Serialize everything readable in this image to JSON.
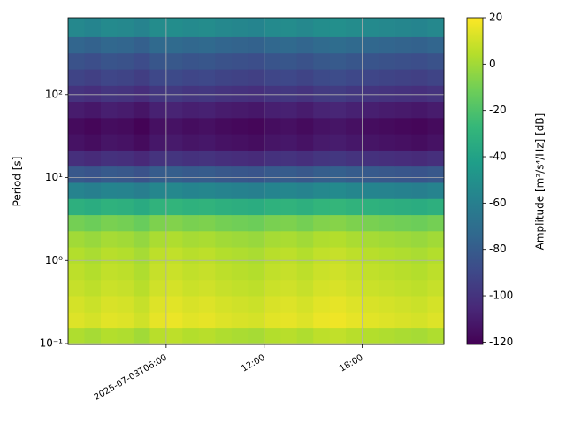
{
  "chart_data": {
    "type": "heatmap",
    "y_label": "Period [s]",
    "colorbar_label": "Amplitude [m²/s⁴/Hz] [dB]",
    "colormap": "viridis",
    "y_log": true,
    "grid": true,
    "xlim": [
      0,
      23
    ],
    "xticks": [
      {
        "value": 6,
        "label": "2025-07-03T06:00"
      },
      {
        "value": 12,
        "label": "12:00"
      },
      {
        "value": 18,
        "label": "18:00"
      }
    ],
    "ylim": [
      0.0976,
      843
    ],
    "yticks": [
      {
        "value": 0.1,
        "label": "10⁻¹"
      },
      {
        "value": 1,
        "label": "10⁰"
      },
      {
        "value": 10,
        "label": "10¹"
      },
      {
        "value": 100,
        "label": "10²"
      }
    ],
    "clim": [
      -121,
      20
    ],
    "cticks": [
      -120,
      -100,
      -80,
      -60,
      -40,
      -20,
      0,
      20
    ],
    "x_edges": [
      0,
      1,
      2,
      3,
      4,
      5,
      6,
      7,
      8,
      9,
      10,
      11,
      12,
      13,
      14,
      15,
      16,
      17,
      18,
      19,
      20,
      21,
      22,
      23
    ],
    "y_edges": [
      0.0976,
      0.153,
      0.24,
      0.376,
      0.589,
      0.923,
      1.45,
      2.27,
      3.55,
      5.57,
      8.73,
      13.7,
      21.4,
      33.6,
      52.6,
      82.5,
      129,
      202,
      317,
      497,
      843
    ],
    "z": [
      [
        3,
        1,
        4,
        3,
        0,
        5,
        6,
        4,
        5,
        3,
        2,
        1,
        4,
        5,
        3,
        6,
        7,
        5,
        4,
        3,
        2,
        1,
        3
      ],
      [
        13,
        11,
        14,
        13,
        10,
        15,
        16,
        14,
        15,
        13,
        12,
        11,
        14,
        15,
        13,
        16,
        17,
        15,
        14,
        13,
        12,
        11,
        13
      ],
      [
        11,
        9,
        12,
        11,
        8,
        13,
        14,
        12,
        13,
        11,
        10,
        9,
        12,
        13,
        11,
        14,
        15,
        13,
        12,
        11,
        10,
        9,
        11
      ],
      [
        8,
        6,
        9,
        8,
        5,
        10,
        11,
        9,
        10,
        8,
        7,
        6,
        9,
        10,
        8,
        11,
        12,
        10,
        9,
        8,
        7,
        6,
        8
      ],
      [
        6,
        4,
        7,
        6,
        3,
        8,
        9,
        7,
        8,
        6,
        5,
        4,
        7,
        8,
        6,
        9,
        10,
        8,
        7,
        6,
        5,
        4,
        6
      ],
      [
        4,
        2,
        5,
        4,
        1,
        6,
        7,
        5,
        6,
        4,
        3,
        2,
        5,
        6,
        4,
        7,
        8,
        6,
        5,
        4,
        3,
        2,
        4
      ],
      [
        0,
        -2,
        1,
        0,
        -3,
        2,
        3,
        1,
        2,
        0,
        -1,
        -2,
        1,
        2,
        0,
        3,
        4,
        2,
        1,
        0,
        -1,
        -2,
        0
      ],
      [
        -10,
        -12,
        -9,
        -10,
        -13,
        -8,
        -7,
        -9,
        -8,
        -10,
        -11,
        -12,
        -9,
        -8,
        -10,
        -7,
        -6,
        -8,
        -9,
        -10,
        -11,
        -12,
        -10
      ],
      [
        -32,
        -34,
        -31,
        -32,
        -35,
        -30,
        -29,
        -31,
        -30,
        -32,
        -33,
        -34,
        -31,
        -30,
        -32,
        -29,
        -28,
        -30,
        -31,
        -32,
        -33,
        -34,
        -32
      ],
      [
        -58,
        -60,
        -57,
        -58,
        -61,
        -56,
        -55,
        -57,
        -56,
        -58,
        -59,
        -60,
        -57,
        -56,
        -58,
        -55,
        -54,
        -56,
        -57,
        -58,
        -59,
        -60,
        -58
      ],
      [
        -82,
        -84,
        -81,
        -82,
        -85,
        -80,
        -79,
        -81,
        -80,
        -82,
        -83,
        -84,
        -81,
        -80,
        -82,
        -79,
        -78,
        -80,
        -81,
        -82,
        -83,
        -84,
        -82
      ],
      [
        -102,
        -104,
        -101,
        -102,
        -105,
        -100,
        -99,
        -101,
        -100,
        -102,
        -103,
        -104,
        -101,
        -100,
        -102,
        -99,
        -98,
        -100,
        -101,
        -102,
        -103,
        -104,
        -102
      ],
      [
        -114,
        -116,
        -113,
        -114,
        -117,
        -112,
        -111,
        -113,
        -112,
        -114,
        -115,
        -116,
        -113,
        -112,
        -114,
        -111,
        -110,
        -112,
        -113,
        -114,
        -115,
        -116,
        -114
      ],
      [
        -117,
        -119,
        -116,
        -117,
        -120,
        -115,
        -114,
        -116,
        -115,
        -117,
        -118,
        -119,
        -116,
        -115,
        -117,
        -114,
        -113,
        -115,
        -116,
        -117,
        -118,
        -119,
        -117
      ],
      [
        -110,
        -112,
        -109,
        -110,
        -113,
        -108,
        -107,
        -109,
        -108,
        -110,
        -111,
        -112,
        -109,
        -108,
        -110,
        -107,
        -106,
        -108,
        -109,
        -110,
        -111,
        -112,
        -110
      ],
      [
        -100,
        -102,
        -99,
        -100,
        -103,
        -98,
        -97,
        -99,
        -98,
        -100,
        -101,
        -102,
        -99,
        -98,
        -100,
        -97,
        -96,
        -98,
        -99,
        -100,
        -101,
        -102,
        -100
      ],
      [
        -92,
        -94,
        -91,
        -92,
        -95,
        -90,
        -89,
        -91,
        -90,
        -92,
        -93,
        -94,
        -91,
        -90,
        -92,
        -89,
        -88,
        -90,
        -91,
        -92,
        -93,
        -94,
        -92
      ],
      [
        -85,
        -87,
        -84,
        -85,
        -88,
        -83,
        -82,
        -84,
        -83,
        -85,
        -86,
        -87,
        -84,
        -83,
        -85,
        -82,
        -81,
        -83,
        -84,
        -85,
        -86,
        -87,
        -85
      ],
      [
        -75,
        -77,
        -74,
        -75,
        -78,
        -73,
        -72,
        -74,
        -73,
        -75,
        -76,
        -77,
        -74,
        -73,
        -75,
        -72,
        -71,
        -73,
        -74,
        -75,
        -76,
        -77,
        -75
      ],
      [
        -55,
        -57,
        -54,
        -55,
        -58,
        -53,
        -52,
        -54,
        -53,
        -55,
        -56,
        -57,
        -54,
        -53,
        -55,
        -52,
        -51,
        -53,
        -54,
        -55,
        -56,
        -57,
        -55
      ]
    ]
  }
}
